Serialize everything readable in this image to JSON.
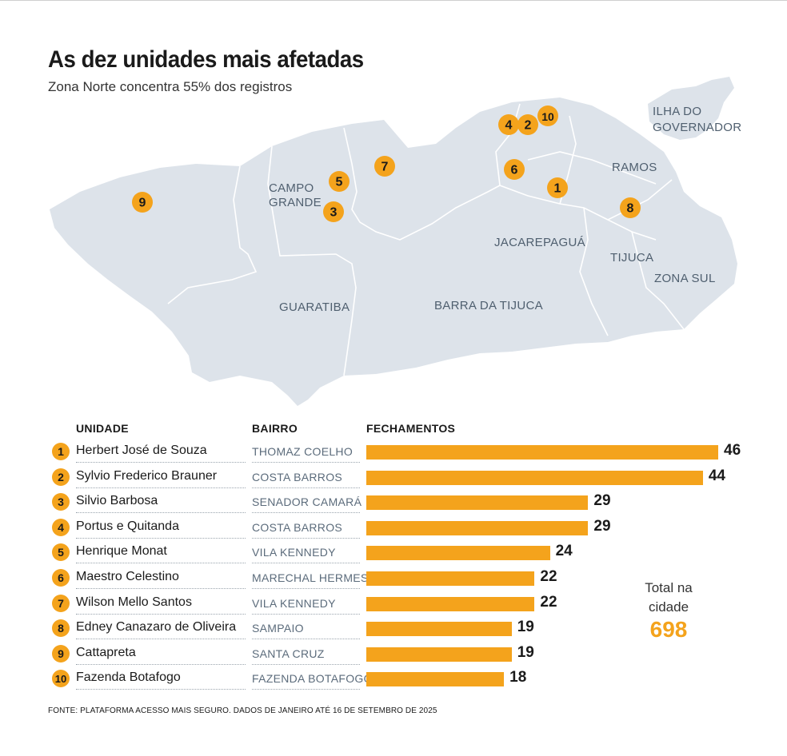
{
  "title": "As dez unidades mais afetadas",
  "subtitle": "Zona Norte concentra 55% dos registros",
  "map": {
    "region_labels": {
      "ilha_l1": "ILHA DO",
      "ilha_l2": "GOVERNADOR",
      "ramos": "RAMOS",
      "campo_l1": "CAMPO",
      "campo_l2": "GRANDE",
      "jacarepagua": "JACAREPAGUÁ",
      "tijuca": "TIJUCA",
      "zona_sul": "ZONA SUL",
      "guaratiba": "GUARATIBA",
      "barra": "BARRA DA TIJUCA"
    },
    "pin_labels": [
      "1",
      "2",
      "3",
      "4",
      "5",
      "6",
      "7",
      "8",
      "9",
      "10"
    ],
    "land_color": "#dde3ea",
    "pin_color": "#f4a31c"
  },
  "table": {
    "headers": {
      "unit": "UNIDADE",
      "bairro": "BAIRRO",
      "value": "FECHAMENTOS"
    },
    "rows": [
      {
        "rank": "1",
        "unit": "Herbert José de Souza",
        "bairro": "THOMAZ COELHO"
      },
      {
        "rank": "2",
        "unit": "Sylvio Frederico Brauner",
        "bairro": "COSTA BARROS"
      },
      {
        "rank": "3",
        "unit": "Silvio Barbosa",
        "bairro": "SENADOR CAMARÁ"
      },
      {
        "rank": "4",
        "unit": "Portus e Quitanda",
        "bairro": "COSTA BARROS"
      },
      {
        "rank": "5",
        "unit": "Henrique Monat",
        "bairro": "VILA KENNEDY"
      },
      {
        "rank": "6",
        "unit": "Maestro Celestino",
        "bairro": "MARECHAL HERMES"
      },
      {
        "rank": "7",
        "unit": "Wilson Mello Santos",
        "bairro": "VILA KENNEDY"
      },
      {
        "rank": "8",
        "unit": "Edney Canazaro de Oliveira",
        "bairro": "SAMPAIO"
      },
      {
        "rank": "9",
        "unit": "Cattapreta",
        "bairro": "SANTA CRUZ"
      },
      {
        "rank": "10",
        "unit": "Fazenda Botafogo",
        "bairro": "FAZENDA BOTAFOGO"
      }
    ]
  },
  "chart_data": {
    "type": "bar",
    "orientation": "horizontal",
    "categories": [
      "Herbert José de Souza",
      "Sylvio Frederico Brauner",
      "Silvio Barbosa",
      "Portus e Quitanda",
      "Henrique Monat",
      "Maestro Celestino",
      "Wilson Mello Santos",
      "Edney Canazaro de Oliveira",
      "Cattapreta",
      "Fazenda Botafogo"
    ],
    "values": [
      46,
      44,
      29,
      29,
      24,
      22,
      22,
      19,
      19,
      18
    ],
    "value_labels": [
      "46",
      "44",
      "29",
      "29",
      "24",
      "22",
      "22",
      "19",
      "19",
      "18"
    ],
    "xlabel": "FECHAMENTOS",
    "xlim": [
      0,
      46
    ],
    "bar_color": "#f4a31c",
    "grid": false,
    "legend": "none"
  },
  "total": {
    "label_line1": "Total na",
    "label_line2": "cidade",
    "value": "698",
    "color": "#f4a31c"
  },
  "source": "FONTE: PLATAFORMA ACESSO MAIS SEGURO. DADOS DE JANEIRO ATÉ 16 DE SETEMBRO DE 2025"
}
